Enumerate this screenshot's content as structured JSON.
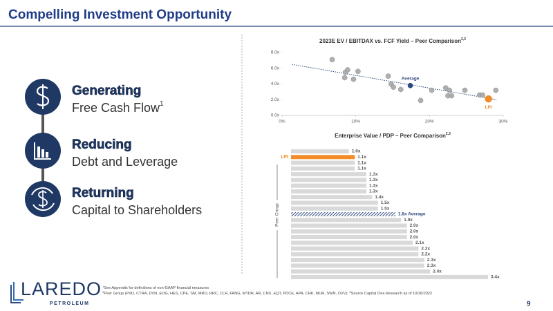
{
  "header": {
    "title": "Compelling Investment Opportunity"
  },
  "pillars": [
    {
      "title": "Generating",
      "subtitle": "Free Cash Flow",
      "sup": "1"
    },
    {
      "title": "Reducing",
      "subtitle": "Debt and Leverage"
    },
    {
      "title": "Returning",
      "subtitle": "Capital to Shareholders"
    }
  ],
  "chart_data": [
    {
      "type": "scatter",
      "title": "2023E EV / EBITDAX vs. FCF Yield – Peer Comparison",
      "title_sup": "2,3",
      "series": [
        {
          "color": "#a6a6a6",
          "x": [
            6.8,
            8.6,
            8.9,
            8.5,
            9.7,
            10.3,
            14.4,
            14.8,
            15.1,
            16.1,
            18.8,
            20.3,
            22.2,
            22.7,
            22.5,
            23.0,
            24.8,
            26.8,
            27.2,
            29.0
          ],
          "values": [
            7.1,
            5.5,
            5.8,
            4.8,
            4.6,
            5.6,
            5.0,
            4.0,
            3.6,
            3.3,
            1.9,
            3.2,
            3.5,
            3.2,
            2.5,
            2.5,
            3.2,
            2.6,
            2.6,
            3.2
          ]
        },
        {
          "name": "Average",
          "color": "#2f4a7f",
          "x": [
            17.4
          ],
          "values": [
            3.8
          ]
        },
        {
          "name": "LPI",
          "color": "#f28c28",
          "x": [
            28.0
          ],
          "values": [
            2.1
          ]
        }
      ],
      "xlim": [
        0,
        30
      ],
      "xticks": [
        {
          "value": 0,
          "label": "0%"
        },
        {
          "value": 10,
          "label": "10%"
        },
        {
          "value": 20,
          "label": "20%"
        },
        {
          "value": 30,
          "label": "30%"
        }
      ],
      "ylim": [
        0,
        8
      ],
      "yticks": [
        {
          "value": 0,
          "label": "0.0x"
        },
        {
          "value": 2,
          "label": "2.0x"
        },
        {
          "value": 4,
          "label": "4.0x"
        },
        {
          "value": 6,
          "label": "6.0x"
        },
        {
          "value": 8,
          "label": "8.0x"
        }
      ],
      "trendline": true
    },
    {
      "type": "hbar",
      "title": "Enterprise Value / PDP – Peer Comparison",
      "title_sup": "2,3",
      "y_label": "Peer Group",
      "categories": [
        null,
        "LPI",
        null,
        null,
        null,
        null,
        null,
        null,
        null,
        null,
        null,
        null,
        null,
        null,
        null,
        null,
        null,
        null,
        null,
        null,
        null,
        null,
        null
      ],
      "values": [
        1.0,
        1.1,
        1.1,
        1.1,
        1.3,
        1.3,
        1.3,
        1.3,
        1.4,
        1.5,
        1.5,
        1.8,
        1.9,
        2.0,
        2.0,
        2.0,
        2.1,
        2.2,
        2.2,
        2.3,
        2.3,
        2.4,
        3.4
      ],
      "value_labels": [
        "1.0x",
        "1.1x",
        "1.1x",
        "1.1x",
        "1.3x",
        "1.3x",
        "1.3x",
        "1.3x",
        "1.4x",
        "1.5x",
        "1.5x",
        "1.8x Average",
        "1.9x",
        "2.0x",
        "2.0x",
        "2.0x",
        "2.1x",
        "2.2x",
        "2.2x",
        "2.3x",
        "2.3x",
        "2.4x",
        "3.4x"
      ],
      "colors": [
        "#d9d9d9",
        "#f28c28",
        "#d9d9d9",
        "#d9d9d9",
        "#d9d9d9",
        "#d9d9d9",
        "#d9d9d9",
        "#d9d9d9",
        "#d9d9d9",
        "#d9d9d9",
        "#d9d9d9",
        "#2f4a7f",
        "#d9d9d9",
        "#d9d9d9",
        "#d9d9d9",
        "#d9d9d9",
        "#d9d9d9",
        "#d9d9d9",
        "#d9d9d9",
        "#d9d9d9",
        "#d9d9d9",
        "#d9d9d9",
        "#d9d9d9"
      ]
    }
  ],
  "footnotes": [
    {
      "sup": "1",
      "text": "See Appendix for definitions of non-GAAP financial measures"
    },
    {
      "sup": "2",
      "text": "Peer Group (PXD, CTRA, DVN, EOG, HES, CPE, SM, MRO, RRC, CLR, FANG, MTDR, AR, CNX, EQT, PDCE, APA, CHK, MUR, SWN, OVV); "
    },
    {
      "sup": "3",
      "text": "Source Capital One Research as of 10/26/2022"
    }
  ],
  "logo": {
    "name": "LAREDO",
    "sub": "PETROLEUM"
  },
  "page_number": "9"
}
